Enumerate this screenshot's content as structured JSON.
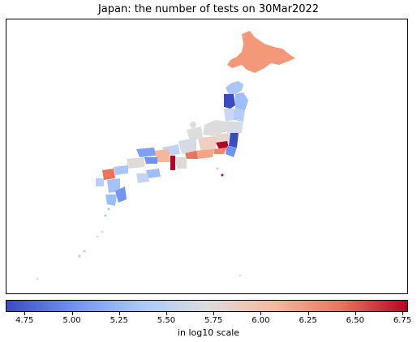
{
  "title": "Japan: the number of tests on 30Mar2022",
  "colorbar": {
    "label": "in log10 scale",
    "range": [
      4.65,
      6.78
    ],
    "ticks": [
      "4.75",
      "5.00",
      "5.25",
      "5.50",
      "5.75",
      "6.00",
      "6.25",
      "6.50",
      "6.75"
    ],
    "tick_values": [
      4.75,
      5.0,
      5.25,
      5.5,
      5.75,
      6.0,
      6.25,
      6.5,
      6.75
    ],
    "colormap": "coolwarm",
    "colors": [
      "#3b4cc0",
      "#6f92f3",
      "#aac7fd",
      "#dddcdc",
      "#f7b89c",
      "#e7745b",
      "#b40426"
    ]
  }
}
